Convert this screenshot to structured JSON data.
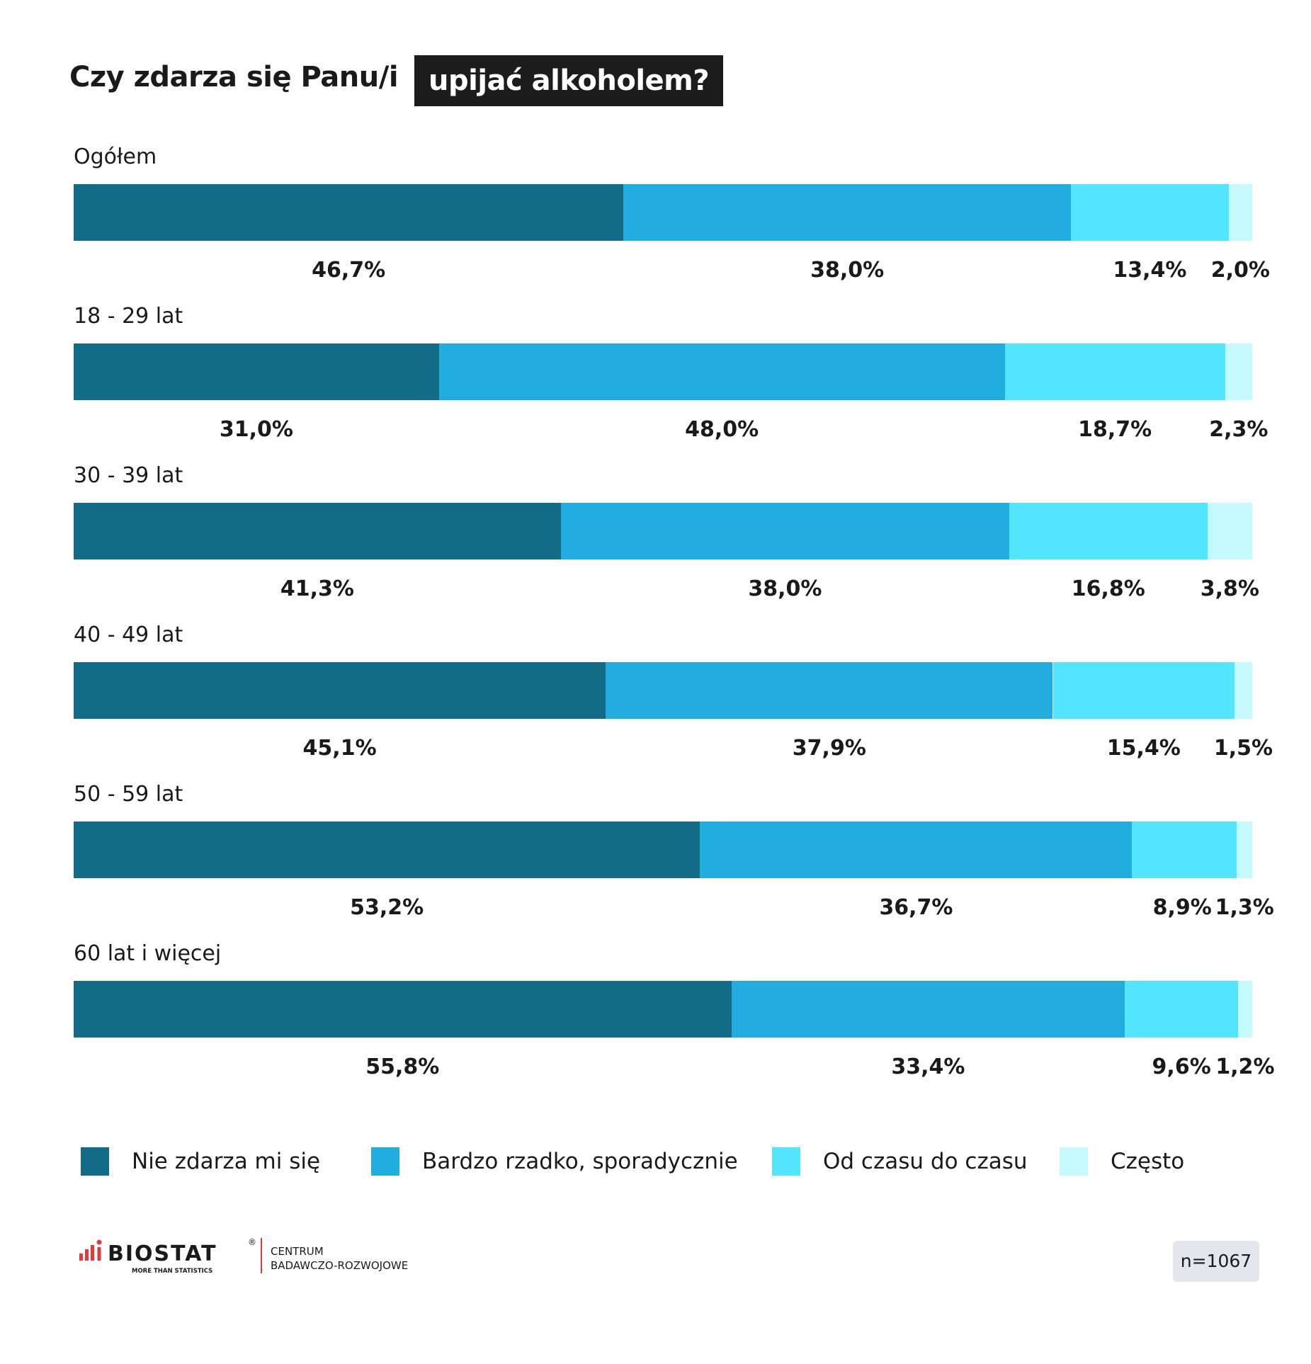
{
  "title": {
    "plain": "Czy zdarza się Panu/i",
    "highlight": "upijać alkoholem?"
  },
  "chart_data": {
    "type": "bar",
    "orientation": "horizontal",
    "stacked": true,
    "categories": [
      "Ogółem",
      "18 - 29 lat",
      "30 - 39 lat",
      "40 - 49 lat",
      "50 - 59 lat",
      "60 lat i więcej"
    ],
    "series": [
      {
        "name": "Nie zdarza mi się",
        "color": "#126b87",
        "values": [
          46.7,
          31.0,
          41.3,
          45.1,
          53.2,
          55.8
        ],
        "labels": [
          "46,7%",
          "31,0%",
          "41,3%",
          "45,1%",
          "53,2%",
          "55,8%"
        ]
      },
      {
        "name": "Bardzo rzadko, sporadycznie",
        "color": "#21ade0",
        "values": [
          38.0,
          48.0,
          38.0,
          37.9,
          36.7,
          33.4
        ],
        "labels": [
          "38,0%",
          "48,0%",
          "38,0%",
          "37,9%",
          "36,7%",
          "33,4%"
        ]
      },
      {
        "name": "Od czasu do czasu",
        "color": "#52e5fd",
        "values": [
          13.4,
          18.7,
          16.8,
          15.4,
          8.9,
          9.6
        ],
        "labels": [
          "13,4%",
          "18,7%",
          "16,8%",
          "15,4%",
          "8,9%",
          "9,6%"
        ]
      },
      {
        "name": "Często",
        "color": "#c4f9fe",
        "values": [
          2.0,
          2.3,
          3.8,
          1.5,
          1.3,
          1.2
        ],
        "labels": [
          "2,0%",
          "2,3%",
          "3,8%",
          "1,5%",
          "1,3%",
          "1,2%"
        ]
      }
    ],
    "xlim": [
      0,
      100
    ],
    "legend_position": "bottom"
  },
  "footer": {
    "logo_brand": "BIOSTAT",
    "logo_tagline": "MORE THAN STATISTICS",
    "logo_division_line1": "CENTRUM",
    "logo_division_line2": "BADAWCZO-ROZWOJOWE",
    "sample_size": "n=1067"
  }
}
